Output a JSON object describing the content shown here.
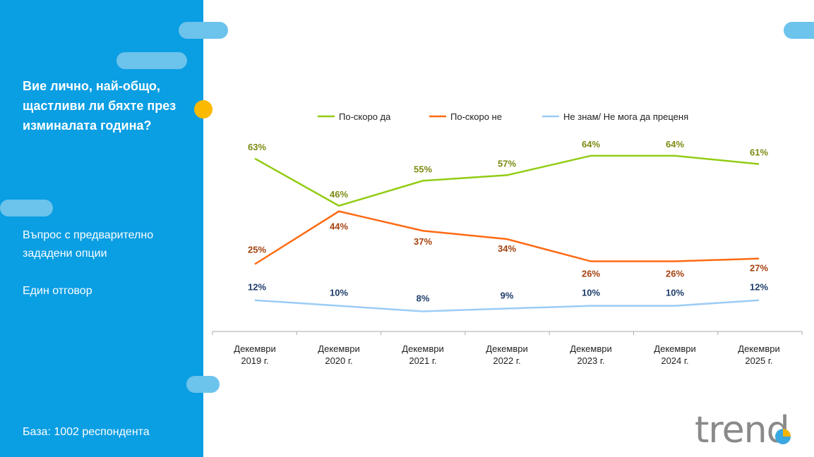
{
  "sidebar": {
    "question": "Вие лично, най-общо, щастливи ли бяхте през изминалата година?",
    "question_type": "Въпрос с предварително зададени опции",
    "answer_type": "Един отговор",
    "base": "База:  1002 респондента"
  },
  "logo": "trend",
  "chart_data": {
    "type": "line",
    "categories": [
      "Декември 2019 г.",
      "Декември 2020 г.",
      "Декември 2021 г.",
      "Декември 2022 г.",
      "Декември 2023 г.",
      "Декември 2024 г.",
      "Декември 2025 г."
    ],
    "categories_lines": [
      [
        "Декември",
        "2019 г."
      ],
      [
        "Декември",
        "2020 г."
      ],
      [
        "Декември",
        "2021 г."
      ],
      [
        "Декември",
        "2022 г."
      ],
      [
        "Декември",
        "2023 г."
      ],
      [
        "Декември",
        "2024 г."
      ],
      [
        "Декември",
        "2025 г."
      ]
    ],
    "series": [
      {
        "name": "По-скоро да",
        "values": [
          63,
          46,
          55,
          57,
          64,
          64,
          61
        ],
        "color": "#92cc14",
        "label_color": "#7d8a12"
      },
      {
        "name": "По-скоро не",
        "values": [
          25,
          44,
          37,
          34,
          26,
          26,
          27
        ],
        "color": "#ff6a13",
        "label_color": "#a3410e"
      },
      {
        "name": "Не знам/ Не мога да преценя",
        "values": [
          12,
          10,
          8,
          9,
          10,
          10,
          12
        ],
        "color": "#9cccf6",
        "label_color": "#1d3d6b"
      }
    ],
    "value_suffix": "%",
    "ylim": [
      0,
      70
    ],
    "grid": false,
    "legend": "top"
  },
  "colors": {
    "sidebar": "#0a9ee3",
    "accent": "#fbb900"
  }
}
